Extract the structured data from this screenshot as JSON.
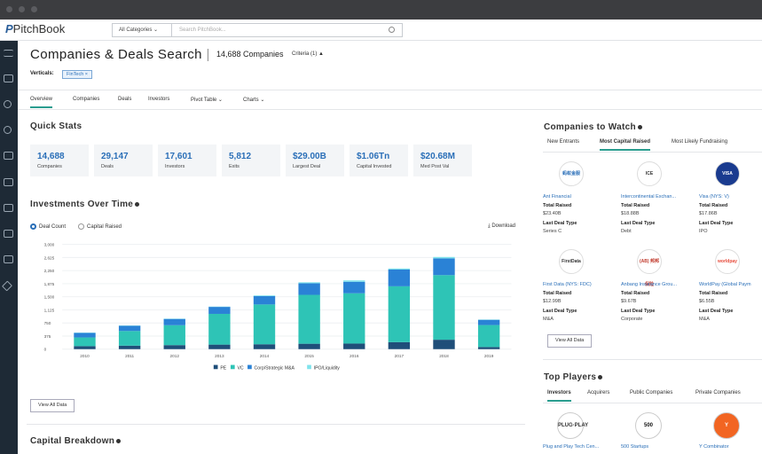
{
  "app": {
    "logo_text": "PitchBook"
  },
  "topbar": {
    "category": "All Categories",
    "search_placeholder": "Search PitchBook..."
  },
  "header": {
    "title": "Companies & Deals Search",
    "count": "14,688 Companies",
    "criteria": "Criteria (1)",
    "verticals_label": "Verticals:",
    "vertical_chip": "FinTech ×"
  },
  "tabs": [
    "Overview",
    "Companies",
    "Deals",
    "Investors",
    "Pivot Table",
    "Charts"
  ],
  "quick_stats": {
    "title": "Quick Stats",
    "items": [
      {
        "value": "14,688",
        "label": "Companies"
      },
      {
        "value": "29,147",
        "label": "Deals"
      },
      {
        "value": "17,601",
        "label": "Investors"
      },
      {
        "value": "5,812",
        "label": "Exits"
      },
      {
        "value": "$29.00B",
        "label": "Largest Deal"
      },
      {
        "value": "$1.06Tn",
        "label": "Capital Invested"
      },
      {
        "value": "$20.68M",
        "label": "Med Post Val"
      }
    ]
  },
  "investments": {
    "title": "Investments Over Time",
    "radio_deal_count": "Deal Count",
    "radio_capital": "Capital Raised",
    "download": "Download",
    "view_all": "View All Data"
  },
  "capital_breakdown": {
    "title": "Capital Breakdown"
  },
  "chart_data": {
    "type": "bar",
    "stacked": true,
    "categories": [
      "2010",
      "2011",
      "2012",
      "2013",
      "2014",
      "2015",
      "2016",
      "2017",
      "2018",
      "2019"
    ],
    "yticks": [
      "0",
      "375",
      "750",
      "1,125",
      "1,500",
      "1,875",
      "2,250",
      "2,625",
      "3,000"
    ],
    "ylim": [
      0,
      3000
    ],
    "series": [
      {
        "name": "PE",
        "color": "#1f4e79",
        "values": [
          85,
          100,
          115,
          130,
          140,
          155,
          160,
          200,
          270,
          60
        ]
      },
      {
        "name": "VC",
        "color": "#2ec4b6",
        "values": [
          250,
          420,
          570,
          880,
          1140,
          1400,
          1440,
          1600,
          1850,
          630
        ]
      },
      {
        "name": "Corp/Strategic M&A",
        "color": "#2a82d6",
        "values": [
          130,
          150,
          180,
          200,
          240,
          330,
          330,
          480,
          480,
          150
        ]
      },
      {
        "name": "IPO/Liquidity",
        "color": "#7fe3ec",
        "values": [
          10,
          10,
          10,
          10,
          20,
          30,
          40,
          30,
          40,
          10
        ]
      }
    ]
  },
  "watch": {
    "title": "Companies to Watch",
    "tabs": [
      "New Entrants",
      "Most Capital Raised",
      "Most Likely Fundraising"
    ],
    "companies": [
      {
        "logo": "蚂蚁金服",
        "logo_color": "#2a6fb8",
        "logo_bg": "#ffffff",
        "name": "Ant Financial",
        "k1": "Total Raised",
        "v1": "$23.40B",
        "k2": "Last Deal Type",
        "v2": "Series C"
      },
      {
        "logo": "ICE",
        "logo_color": "#333333",
        "logo_bg": "#ffffff",
        "name": "Intercontinental Exchan...",
        "k1": "Total Raised",
        "v1": "$18.88B",
        "k2": "Last Deal Type",
        "v2": "Debt"
      },
      {
        "logo": "VISA",
        "logo_color": "#ffffff",
        "logo_bg": "#1a3b8f",
        "name": "Visa (NYS: V)",
        "k1": "Total Raised",
        "v1": "$17.86B",
        "k2": "Last Deal Type",
        "v2": "IPO"
      },
      {
        "logo": "FirstData",
        "logo_color": "#333333",
        "logo_bg": "#ffffff",
        "name": "First Data (NYS: FDC)",
        "k1": "Total Raised",
        "v1": "$12.99B",
        "k2": "Last Deal Type",
        "v2": "M&A"
      },
      {
        "logo": "(AB) 邦邦保险",
        "logo_color": "#c0392b",
        "logo_bg": "#ffffff",
        "name": "Anbang Insurance Grou...",
        "k1": "Total Raised",
        "v1": "$9.67B",
        "k2": "Last Deal Type",
        "v2": "Corporate"
      },
      {
        "logo": "worldpay",
        "logo_color": "#e74c3c",
        "logo_bg": "#ffffff",
        "name": "WorldPay (Global Paym",
        "k1": "Total Raised",
        "v1": "$6.55B",
        "k2": "Last Deal Type",
        "v2": "M&A"
      }
    ],
    "view_all": "View All Data"
  },
  "players": {
    "title": "Top Players",
    "tabs": [
      "Investors",
      "Acquirers",
      "Public Companies",
      "Private Companies"
    ],
    "items": [
      {
        "logo": "PLUG·PLAY",
        "logo_color": "#333333",
        "logo_bg": "#ffffff",
        "name": "Plug and Play Tech Cen..."
      },
      {
        "logo": "500",
        "logo_color": "#111111",
        "logo_bg": "#ffffff",
        "name": "500 Startups"
      },
      {
        "logo": "Y",
        "logo_color": "#ffffff",
        "logo_bg": "#f26522",
        "name": "Y Combinator"
      }
    ]
  }
}
